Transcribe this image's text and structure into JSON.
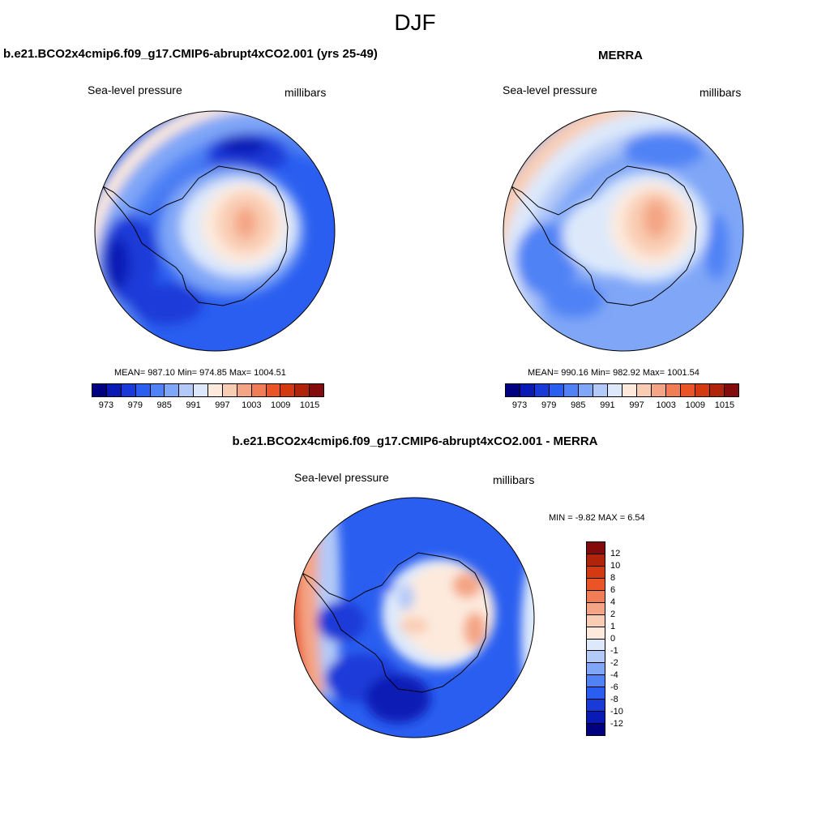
{
  "season": "DJF",
  "panels": {
    "model": {
      "title": "b.e21.BCO2x4cmip6.f09_g17.CMIP6-abrupt4xCO2.001 (yrs 25-49)",
      "variable": "Sea-level pressure",
      "units": "millibars",
      "stats": "MEAN= 987.10  Min= 974.85  Max= 1004.51"
    },
    "obs": {
      "title": "MERRA",
      "variable": "Sea-level pressure",
      "units": "millibars",
      "stats": "MEAN= 990.16  Min= 982.92  Max= 1001.54"
    },
    "diff": {
      "title": "b.e21.BCO2x4cmip6.f09_g17.CMIP6-abrupt4xCO2.001 - MERRA",
      "variable": "Sea-level pressure",
      "units": "millibars",
      "stats": "MIN =  -9.82 MAX =   6.54"
    }
  },
  "colorbar_abs": {
    "colors": [
      "#000080",
      "#0a1ab5",
      "#1a3ad8",
      "#2a5ef0",
      "#5082f5",
      "#7fa6f7",
      "#b3c9f7",
      "#dde9fb",
      "#fdeadd",
      "#f9cdb4",
      "#f4a585",
      "#f17d56",
      "#ea5426",
      "#d43a12",
      "#b0240c",
      "#840b0b"
    ],
    "labels": [
      "973",
      "979",
      "985",
      "991",
      "997",
      "1003",
      "1009",
      "1015"
    ]
  },
  "colorbar_diff": {
    "colors": [
      "#840b0b",
      "#b0240c",
      "#d43a12",
      "#ea5426",
      "#f17d56",
      "#f4a585",
      "#f9cdb4",
      "#fdeadd",
      "#dde9fb",
      "#b3c9f7",
      "#7fa6f7",
      "#5082f5",
      "#2a5ef0",
      "#1a3ad8",
      "#0a1ab5",
      "#000080"
    ],
    "labels": [
      "12",
      "10",
      "8",
      "6",
      "4",
      "2",
      "1",
      "0",
      "-1",
      "-2",
      "-4",
      "-6",
      "-8",
      "-10",
      "-12"
    ]
  }
}
